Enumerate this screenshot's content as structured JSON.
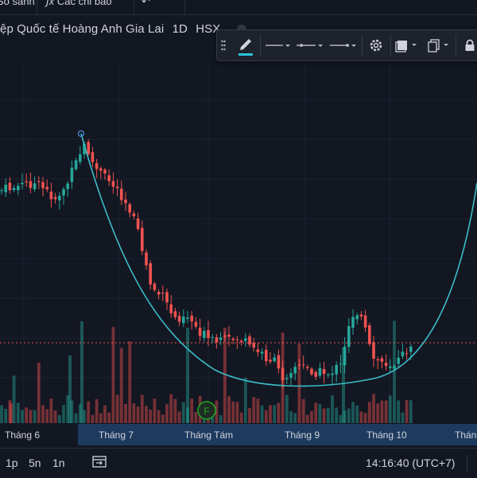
{
  "topbar": {
    "compare_label": "So sánh",
    "indicators_label": "Các chỉ báo"
  },
  "symbol": {
    "name": "ệp Quốc tế Hoàng Anh Gia Lai",
    "interval": "1D",
    "exchange": "HSX"
  },
  "drawing_toolbar": {
    "icons": [
      "drag-handle-icon",
      "pencil-icon",
      "line-style-icon",
      "line-width-icon",
      "line-end-style-icon",
      "gear-icon",
      "layers-icon",
      "clone-icon",
      "lock-icon"
    ]
  },
  "chart_data": {
    "type": "candlestick",
    "x_labels": [
      "Tháng 6",
      "Tháng 7",
      "Tháng Tám",
      "Tháng 9",
      "Tháng 10",
      "Tháng"
    ],
    "colors": {
      "up": "#26a69a",
      "down": "#ef5350",
      "up_volume": "#26a69a",
      "down_volume": "#ef5350",
      "arc": "#3bbcc8",
      "price_line": "#ef5350"
    },
    "event_marker": "F"
  },
  "xaxis": {
    "labels": [
      "Tháng 6",
      "Tháng 7",
      "Tháng Tám",
      "Tháng 9",
      "Tháng 10",
      "Tháng"
    ]
  },
  "bottombar": {
    "ranges": [
      "1p",
      "5n",
      "1n"
    ],
    "time": "14:16:40 (UTC+7)"
  }
}
